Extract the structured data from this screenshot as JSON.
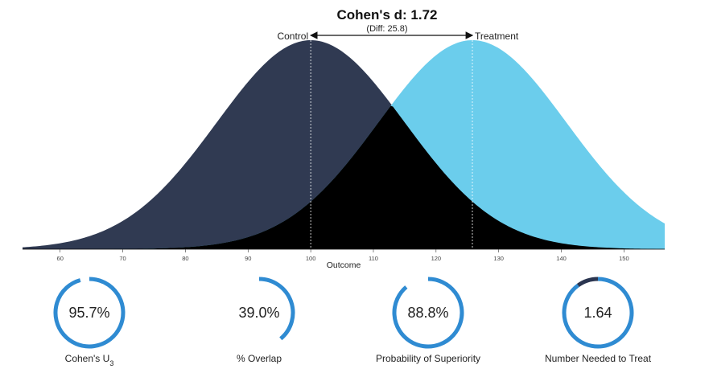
{
  "chart_data": {
    "type": "area",
    "title": "Cohen's d: 1.72",
    "subtitle": "(Diff: 25.8)",
    "xlabel": "Outcome",
    "xlim": [
      54,
      156.5
    ],
    "x_ticks": [
      60,
      70,
      80,
      90,
      100,
      110,
      120,
      130,
      140,
      150
    ],
    "series": [
      {
        "name": "Control",
        "mean": 100,
        "sd": 15,
        "color": "#303a52"
      },
      {
        "name": "Treatment",
        "mean": 125.8,
        "sd": 15,
        "color": "#6bcdec"
      }
    ],
    "overlap_color": "#000000"
  },
  "metrics": [
    {
      "label": "Cohen's U",
      "label_sub": "3",
      "value_text": "95.7%",
      "fraction": 0.957,
      "color": "#2f8bd2"
    },
    {
      "label": "% Overlap",
      "label_sub": "",
      "value_text": "39.0%",
      "fraction": 0.39,
      "color": "#2f8bd2"
    },
    {
      "label": "Probability of Superiority",
      "label_sub": "",
      "value_text": "88.8%",
      "fraction": 0.888,
      "color": "#2f8bd2"
    },
    {
      "label": "Number Needed to Treat",
      "label_sub": "",
      "value_text": "1.64",
      "fraction": 0.9,
      "color": "#2f8bd2",
      "remainder_color": "#2a3550"
    }
  ]
}
